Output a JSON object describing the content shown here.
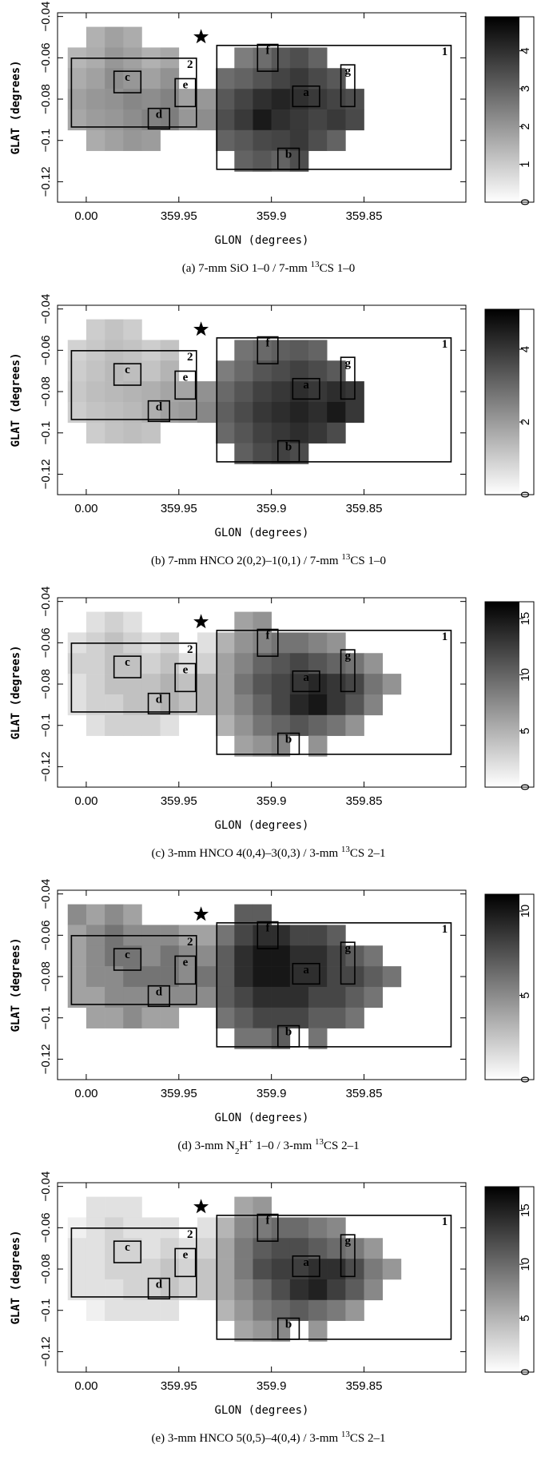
{
  "chart_data": [
    {
      "type": "heatmap",
      "caption": [
        {
          "text": "(a) 7-mm SiO 1–0 / 7-mm "
        },
        {
          "text": "13",
          "script": "sup"
        },
        {
          "text": "CS 1–0"
        }
      ],
      "x_label": "GLON (degrees)",
      "y_label": "GLAT (degrees)",
      "xlim": [
        360.0155,
        359.795
      ],
      "ylim": [
        -0.1299,
        -0.0382
      ],
      "xticks": [
        {
          "value": 360,
          "label": "0.00"
        },
        359.95,
        359.9,
        359.85
      ],
      "yticks": [
        {
          "value": -0.04,
          "label": "−0.04"
        },
        {
          "value": -0.06,
          "label": "−0.06"
        },
        {
          "value": -0.08,
          "label": "−0.08"
        },
        {
          "value": -0.1,
          "label": "−0.1"
        },
        {
          "value": -0.12,
          "label": "−0.12"
        }
      ],
      "zlim": [
        0,
        4.9
      ],
      "zticks": [
        0,
        1,
        2,
        3,
        4
      ],
      "cmap": [
        "#ffffff",
        "#000000"
      ],
      "regions": [
        "1",
        "2",
        "a",
        "b",
        "c",
        "d",
        "e",
        "f",
        "g"
      ],
      "x": [
        360.005,
        359.995,
        359.985,
        359.975,
        359.965,
        359.955,
        359.945,
        359.935,
        359.925,
        359.915,
        359.905,
        359.895,
        359.885,
        359.875,
        359.865,
        359.855,
        359.845,
        359.835
      ],
      "y": [
        -0.05,
        -0.06,
        -0.07,
        -0.08,
        -0.09,
        -0.1,
        -0.11
      ],
      "z": [
        [
          null,
          1.5,
          1.8,
          1.6,
          null,
          null,
          null,
          null,
          null,
          null,
          null,
          null,
          null,
          null,
          null,
          null,
          null,
          null
        ],
        [
          1.4,
          1.6,
          2,
          1.8,
          1.5,
          1.7,
          null,
          null,
          null,
          2.5,
          2.8,
          3.2,
          3.4,
          3.0,
          null,
          null,
          null,
          null
        ],
        [
          1.6,
          1.8,
          2.2,
          2.0,
          1.8,
          2.1,
          null,
          null,
          2.8,
          3.0,
          3.3,
          3.6,
          3.8,
          3.5,
          3.2,
          null,
          null,
          null
        ],
        [
          1.8,
          2.0,
          2.1,
          2.3,
          2.2,
          2.4,
          1.8,
          2.0,
          3.2,
          3.6,
          4.0,
          4.2,
          4.0,
          3.8,
          3.6,
          3.4,
          null,
          null
        ],
        [
          1.7,
          1.9,
          2.0,
          2.2,
          2.4,
          2.5,
          2.0,
          2.2,
          3.4,
          3.8,
          4.4,
          4.0,
          3.8,
          3.6,
          3.8,
          3.5,
          null,
          null
        ],
        [
          null,
          1.6,
          1.8,
          2.0,
          1.9,
          null,
          null,
          null,
          3.0,
          3.2,
          3.5,
          3.6,
          3.8,
          3.4,
          3.0,
          null,
          null,
          null
        ],
        [
          null,
          null,
          null,
          null,
          null,
          null,
          null,
          null,
          null,
          3.0,
          3.2,
          3.0,
          3.4,
          null,
          null,
          null,
          null,
          null
        ]
      ]
    },
    {
      "type": "heatmap",
      "caption": [
        {
          "text": "(b) 7-mm HNCO 2(0,2)–1(0,1) / 7-mm "
        },
        {
          "text": "13",
          "script": "sup"
        },
        {
          "text": "CS 1–0"
        }
      ],
      "x_label": "GLON (degrees)",
      "y_label": "GLAT (degrees)",
      "xlim": [
        360.0155,
        359.795
      ],
      "ylim": [
        -0.1299,
        -0.0382
      ],
      "xticks": [
        {
          "value": 360,
          "label": "0.00"
        },
        359.95,
        359.9,
        359.85
      ],
      "yticks": [
        {
          "value": -0.04,
          "label": "−0.04"
        },
        {
          "value": -0.06,
          "label": "−0.06"
        },
        {
          "value": -0.08,
          "label": "−0.08"
        },
        {
          "value": -0.1,
          "label": "−0.1"
        },
        {
          "value": -0.12,
          "label": "−0.12"
        }
      ],
      "zlim": [
        0,
        5.1
      ],
      "zticks": [
        0,
        2,
        4
      ],
      "cmap": [
        "#ffffff",
        "#000000"
      ],
      "regions": [
        "1",
        "2",
        "a",
        "b",
        "c",
        "d",
        "e",
        "f",
        "g"
      ],
      "x": [
        360.005,
        359.995,
        359.985,
        359.975,
        359.965,
        359.955,
        359.945,
        359.935,
        359.925,
        359.915,
        359.905,
        359.895,
        359.885,
        359.875,
        359.865,
        359.855,
        359.845,
        359.835
      ],
      "y": [
        -0.05,
        -0.06,
        -0.07,
        -0.08,
        -0.09,
        -0.1,
        -0.11
      ],
      "z": [
        [
          null,
          1.0,
          1.2,
          1.0,
          null,
          null,
          null,
          null,
          null,
          null,
          null,
          null,
          null,
          null,
          null,
          null,
          null,
          null
        ],
        [
          0.9,
          1.1,
          1.3,
          1.2,
          1.0,
          1.2,
          null,
          null,
          null,
          2.8,
          3.0,
          3.2,
          3.3,
          3.1,
          null,
          null,
          null,
          null
        ],
        [
          1.0,
          1.2,
          1.4,
          1.3,
          1.2,
          1.5,
          null,
          null,
          2.6,
          3.0,
          3.4,
          3.6,
          3.8,
          3.6,
          3.3,
          null,
          null,
          null
        ],
        [
          1.1,
          1.3,
          1.4,
          1.5,
          1.6,
          1.8,
          1.8,
          2.2,
          3.0,
          3.4,
          3.8,
          4.0,
          4.2,
          4.0,
          4.2,
          4.0,
          null,
          null
        ],
        [
          1.0,
          1.2,
          1.3,
          1.4,
          1.6,
          1.9,
          2.0,
          2.4,
          3.2,
          3.6,
          4.0,
          4.2,
          4.4,
          4.2,
          4.6,
          4.0,
          null,
          null
        ],
        [
          null,
          1.0,
          1.2,
          1.3,
          1.2,
          null,
          null,
          null,
          3.0,
          3.4,
          3.8,
          4.0,
          4.2,
          4.0,
          3.6,
          null,
          null,
          null
        ],
        [
          null,
          null,
          null,
          null,
          null,
          null,
          null,
          null,
          null,
          3.2,
          3.6,
          3.8,
          3.6,
          null,
          null,
          null,
          null,
          null
        ]
      ]
    },
    {
      "type": "heatmap",
      "caption": [
        {
          "text": "(c) 3-mm HNCO 4(0,4)–3(0,3) / 3-mm "
        },
        {
          "text": "13",
          "script": "sup"
        },
        {
          "text": "CS 2–1"
        }
      ],
      "x_label": "GLON (degrees)",
      "y_label": "GLAT (degrees)",
      "xlim": [
        360.0155,
        359.795
      ],
      "ylim": [
        -0.1299,
        -0.0382
      ],
      "xticks": [
        {
          "value": 360,
          "label": "0.00"
        },
        359.95,
        359.9,
        359.85
      ],
      "yticks": [
        {
          "value": -0.04,
          "label": "−0.04"
        },
        {
          "value": -0.06,
          "label": "−0.06"
        },
        {
          "value": -0.08,
          "label": "−0.08"
        },
        {
          "value": -0.1,
          "label": "−0.1"
        },
        {
          "value": -0.12,
          "label": "−0.12"
        }
      ],
      "zlim": [
        0,
        16.5
      ],
      "zticks": [
        0,
        5,
        10,
        15
      ],
      "cmap": [
        "#ffffff",
        "#000000"
      ],
      "regions": [
        "1",
        "2",
        "a",
        "b",
        "c",
        "d",
        "e",
        "f",
        "g"
      ],
      "x": [
        360.005,
        359.995,
        359.985,
        359.975,
        359.965,
        359.955,
        359.945,
        359.935,
        359.925,
        359.915,
        359.905,
        359.895,
        359.885,
        359.875,
        359.865,
        359.855,
        359.845,
        359.835
      ],
      "y": [
        -0.05,
        -0.06,
        -0.07,
        -0.08,
        -0.09,
        -0.1,
        -0.11
      ],
      "z": [
        [
          null,
          2,
          3,
          2,
          null,
          null,
          null,
          null,
          null,
          6,
          7,
          null,
          null,
          null,
          null,
          null,
          null,
          null
        ],
        [
          2,
          3,
          4,
          3,
          2,
          3,
          null,
          2,
          5,
          7,
          8,
          9,
          9,
          8,
          7,
          null,
          null,
          null
        ],
        [
          3,
          3,
          4,
          4,
          3,
          4,
          2,
          3,
          6,
          8,
          10,
          11,
          12,
          11,
          10,
          9,
          7,
          null
        ],
        [
          2,
          3,
          4,
          4,
          4,
          5,
          4,
          5,
          6,
          9,
          11,
          12,
          13,
          14,
          13,
          12,
          9,
          7
        ],
        [
          2,
          3,
          3,
          4,
          4,
          5,
          4,
          5,
          6,
          8,
          10,
          12,
          14,
          15,
          13,
          11,
          8,
          null
        ],
        [
          null,
          2,
          3,
          3,
          3,
          2,
          null,
          null,
          5,
          7,
          9,
          10,
          11,
          10,
          9,
          7,
          null,
          null
        ],
        [
          null,
          null,
          null,
          null,
          null,
          null,
          null,
          null,
          null,
          6,
          7,
          8,
          null,
          7,
          null,
          null,
          null,
          null
        ]
      ]
    },
    {
      "type": "heatmap",
      "caption": [
        {
          "text": "(d) 3-mm N"
        },
        {
          "text": "2",
          "script": "sub"
        },
        {
          "text": "H"
        },
        {
          "text": "+",
          "script": "sup"
        },
        {
          "text": " 1–0 / 3-mm "
        },
        {
          "text": "13",
          "script": "sup"
        },
        {
          "text": "CS 2–1"
        }
      ],
      "x_label": "GLON (degrees)",
      "y_label": "GLAT (degrees)",
      "xlim": [
        360.0155,
        359.795
      ],
      "ylim": [
        -0.1299,
        -0.0382
      ],
      "xticks": [
        {
          "value": 360,
          "label": "0.00"
        },
        359.95,
        359.9,
        359.85
      ],
      "yticks": [
        {
          "value": -0.04,
          "label": "−0.04"
        },
        {
          "value": -0.06,
          "label": "−0.06"
        },
        {
          "value": -0.08,
          "label": "−0.08"
        },
        {
          "value": -0.1,
          "label": "−0.1"
        },
        {
          "value": -0.12,
          "label": "−0.12"
        }
      ],
      "zlim": [
        0,
        11
      ],
      "zticks": [
        0,
        5,
        10
      ],
      "cmap": [
        "#ffffff",
        "#000000"
      ],
      "regions": [
        "1",
        "2",
        "a",
        "b",
        "c",
        "d",
        "e",
        "f",
        "g"
      ],
      "x": [
        360.005,
        359.995,
        359.985,
        359.975,
        359.965,
        359.955,
        359.945,
        359.935,
        359.925,
        359.915,
        359.905,
        359.895,
        359.885,
        359.875,
        359.865,
        359.855,
        359.845,
        359.835
      ],
      "y": [
        -0.05,
        -0.06,
        -0.07,
        -0.08,
        -0.09,
        -0.1,
        -0.11
      ],
      "z": [
        [
          5,
          4,
          5,
          4,
          null,
          null,
          null,
          null,
          null,
          7,
          7,
          null,
          null,
          null,
          null,
          null,
          null,
          null
        ],
        [
          4,
          5,
          6,
          5,
          5,
          5,
          4,
          4,
          6,
          8,
          9,
          9,
          8,
          8,
          7,
          null,
          null,
          null
        ],
        [
          4,
          5,
          6,
          6,
          5,
          6,
          5,
          5,
          7,
          9,
          10,
          10,
          9,
          9,
          8,
          7,
          6,
          null
        ],
        [
          4,
          5,
          5,
          6,
          6,
          6,
          5,
          6,
          7,
          9,
          10,
          10,
          9,
          9,
          8,
          8,
          7,
          6
        ],
        [
          4,
          4,
          5,
          5,
          5,
          5,
          5,
          5,
          7,
          8,
          9,
          9,
          9,
          8,
          8,
          7,
          6,
          null
        ],
        [
          null,
          4,
          4,
          5,
          4,
          4,
          null,
          null,
          6,
          7,
          8,
          8,
          8,
          7,
          7,
          6,
          null,
          null
        ],
        [
          null,
          null,
          null,
          null,
          null,
          null,
          null,
          null,
          null,
          6,
          6,
          7,
          null,
          6,
          null,
          null,
          null,
          null
        ]
      ]
    },
    {
      "type": "heatmap",
      "caption": [
        {
          "text": "(e) 3-mm HNCO 5(0,5)–4(0,4) / 3-mm "
        },
        {
          "text": "13",
          "script": "sup"
        },
        {
          "text": "CS 2–1"
        }
      ],
      "x_label": "GLON (degrees)",
      "y_label": "GLAT (degrees)",
      "xlim": [
        360.0155,
        359.795
      ],
      "ylim": [
        -0.1299,
        -0.0382
      ],
      "xticks": [
        {
          "value": 360,
          "label": "0.00"
        },
        359.95,
        359.9,
        359.85
      ],
      "yticks": [
        {
          "value": -0.04,
          "label": "−0.04"
        },
        {
          "value": -0.06,
          "label": "−0.06"
        },
        {
          "value": -0.08,
          "label": "−0.08"
        },
        {
          "value": -0.1,
          "label": "−0.1"
        },
        {
          "value": -0.12,
          "label": "−0.12"
        }
      ],
      "zlim": [
        0,
        17.2
      ],
      "zticks": [
        0,
        5,
        10,
        15
      ],
      "cmap": [
        "#ffffff",
        "#000000"
      ],
      "regions": [
        "1",
        "2",
        "a",
        "b",
        "c",
        "d",
        "e",
        "f",
        "g"
      ],
      "x": [
        360.005,
        359.995,
        359.985,
        359.975,
        359.965,
        359.955,
        359.945,
        359.935,
        359.925,
        359.915,
        359.905,
        359.895,
        359.885,
        359.875,
        359.865,
        359.855,
        359.845,
        359.835
      ],
      "y": [
        -0.05,
        -0.06,
        -0.07,
        -0.08,
        -0.09,
        -0.1,
        -0.11
      ],
      "z": [
        [
          null,
          2,
          2,
          2,
          null,
          null,
          null,
          null,
          null,
          6,
          7,
          null,
          null,
          null,
          null,
          null,
          null,
          null
        ],
        [
          1,
          2,
          3,
          2,
          2,
          2,
          null,
          2,
          5,
          8,
          9,
          10,
          10,
          9,
          8,
          null,
          null,
          null
        ],
        [
          2,
          2,
          3,
          3,
          2,
          3,
          2,
          3,
          6,
          9,
          11,
          12,
          12,
          11,
          10,
          9,
          7,
          null
        ],
        [
          2,
          2,
          3,
          3,
          3,
          4,
          3,
          4,
          6,
          9,
          12,
          13,
          13,
          14,
          14,
          12,
          9,
          7
        ],
        [
          2,
          2,
          2,
          3,
          3,
          4,
          3,
          4,
          6,
          8,
          10,
          12,
          14,
          15,
          13,
          11,
          8,
          null
        ],
        [
          null,
          1,
          2,
          2,
          2,
          2,
          null,
          null,
          5,
          7,
          9,
          10,
          11,
          10,
          9,
          7,
          null,
          null
        ],
        [
          null,
          null,
          null,
          null,
          null,
          null,
          null,
          null,
          null,
          6,
          7,
          8,
          null,
          7,
          null,
          null,
          null,
          null
        ]
      ]
    }
  ]
}
